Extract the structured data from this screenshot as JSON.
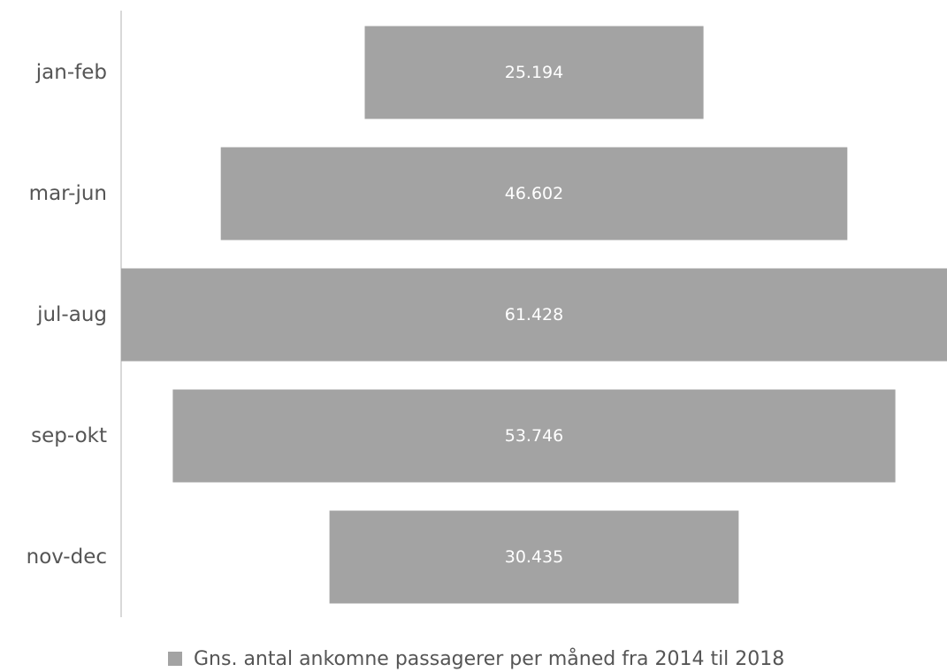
{
  "chart_data": {
    "type": "bar",
    "orientation": "horizontal-funnel",
    "categories": [
      "jan-feb",
      "mar-jun",
      "jul-aug",
      "sep-okt",
      "nov-dec"
    ],
    "series": [
      {
        "name": "Gns. antal ankomne passagerer per måned fra 2014 til 2018",
        "values": [
          25194,
          46602,
          61428,
          53746,
          30435
        ],
        "value_labels": [
          "25.194",
          "46.602",
          "61.428",
          "53.746",
          "30.435"
        ]
      }
    ],
    "xlim": [
      0,
      61428
    ],
    "grid": false,
    "legend_position": "bottom",
    "colors": {
      "bar": "#a3a3a3",
      "axis": "#d9d9d9",
      "category_text": "#555555",
      "value_text": "#ffffff"
    }
  }
}
